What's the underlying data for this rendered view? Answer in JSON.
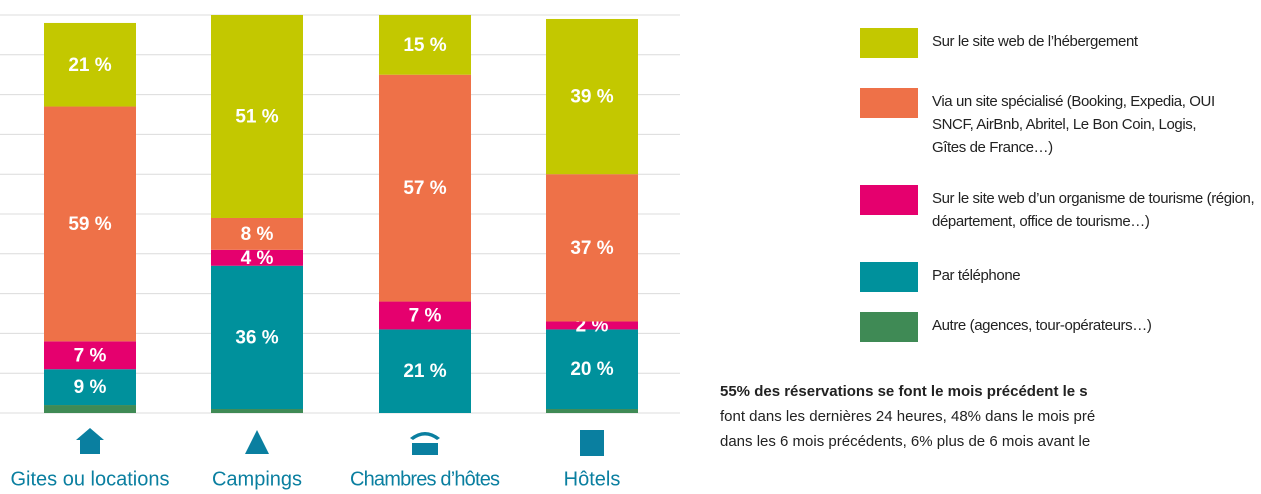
{
  "chart_data": {
    "type": "stacked-bar",
    "categories": [
      "Gites ou locations",
      "Campings",
      "Chambres d’hôtes",
      "Hôtels"
    ],
    "series": [
      {
        "name": "Autre (agences, tour-opérateurs…)",
        "color": "#3f8a55",
        "values": [
          2,
          1,
          0,
          1
        ]
      },
      {
        "name": "Par téléphone",
        "color": "#00919c",
        "values": [
          9,
          36,
          21,
          20
        ],
        "value_labels": [
          "9 %",
          "36 %",
          "21 %",
          "20 %"
        ]
      },
      {
        "name": "Sur le site web d’un organisme de tourisme (région, département, office de tourisme…)",
        "color": "#e5006e",
        "values": [
          7,
          4,
          7,
          2
        ],
        "value_labels": [
          "7 %",
          "4 %",
          "7 %",
          "2 %"
        ]
      },
      {
        "name": "Via un site spécialisé (Booking, Expedia, OUI SNCF, AirBnb, Abritel, Le Bon Coin, Logis, Gîtes de France…)",
        "color": "#ee7148",
        "values": [
          59,
          8,
          57,
          37
        ],
        "value_labels": [
          "59 %",
          "8 %",
          "57 %",
          "37 %"
        ]
      },
      {
        "name": "Sur le site web de l’hébergement",
        "color": "#c3c800",
        "values": [
          21,
          51,
          15,
          39
        ],
        "value_labels": [
          "21 %",
          "51 %",
          "15 %",
          "39 %"
        ]
      }
    ],
    "ylim": [
      0,
      100
    ],
    "yticks": [
      0,
      10,
      20,
      30,
      40,
      50,
      60,
      70,
      80,
      90,
      100
    ],
    "grid": true
  },
  "note": {
    "lines": [
      "55% des réservations se font le mois précédent le s",
      "font dans les dernières 24 heures, 48% dans le mois pré",
      "dans les 6 mois précédents, 6% plus de 6 mois avant le"
    ]
  }
}
